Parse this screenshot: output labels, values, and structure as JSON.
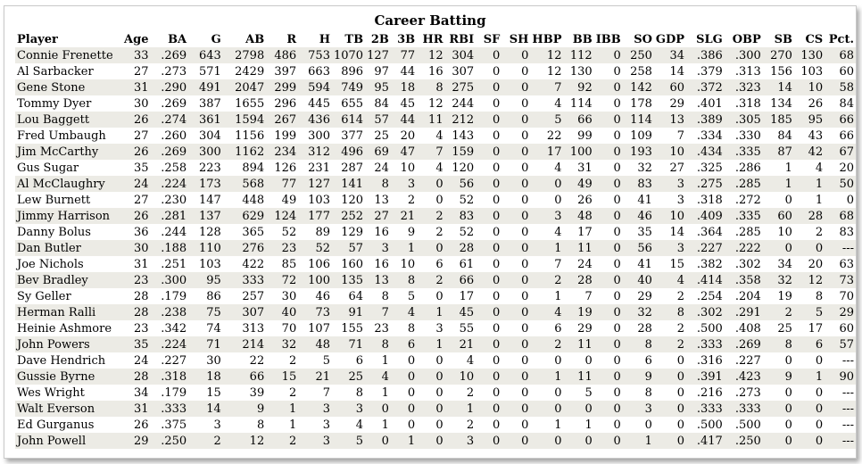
{
  "title": "Career Batting",
  "columns": [
    "Player",
    "Age",
    "BA",
    "G",
    "AB",
    "R",
    "H",
    "TB",
    "2B",
    "3B",
    "HR",
    "RBI",
    "SF",
    "SH",
    "HBP",
    "BB",
    "IBB",
    "SO",
    "GDP",
    "SLG",
    "OBP",
    "SB",
    "CS",
    "Pct."
  ],
  "rows": [
    [
      "Connie Frenette",
      "33",
      ".269",
      "643",
      "2798",
      "486",
      "753",
      "1070",
      "127",
      "77",
      "12",
      "304",
      "0",
      "0",
      "12",
      "112",
      "0",
      "250",
      "34",
      ".386",
      ".300",
      "270",
      "130",
      "68"
    ],
    [
      "Al Sarbacker",
      "27",
      ".273",
      "571",
      "2429",
      "397",
      "663",
      "896",
      "97",
      "44",
      "16",
      "307",
      "0",
      "0",
      "12",
      "130",
      "0",
      "258",
      "14",
      ".379",
      ".313",
      "156",
      "103",
      "60"
    ],
    [
      "Gene Stone",
      "31",
      ".290",
      "491",
      "2047",
      "299",
      "594",
      "749",
      "95",
      "18",
      "8",
      "275",
      "0",
      "0",
      "7",
      "92",
      "0",
      "142",
      "60",
      ".372",
      ".323",
      "14",
      "10",
      "58"
    ],
    [
      "Tommy Dyer",
      "30",
      ".269",
      "387",
      "1655",
      "296",
      "445",
      "655",
      "84",
      "45",
      "12",
      "244",
      "0",
      "0",
      "4",
      "114",
      "0",
      "178",
      "29",
      ".401",
      ".318",
      "134",
      "26",
      "84"
    ],
    [
      "Lou Baggett",
      "26",
      ".274",
      "361",
      "1594",
      "267",
      "436",
      "614",
      "57",
      "44",
      "11",
      "212",
      "0",
      "0",
      "5",
      "66",
      "0",
      "114",
      "13",
      ".389",
      ".305",
      "185",
      "95",
      "66"
    ],
    [
      "Fred Umbaugh",
      "27",
      ".260",
      "304",
      "1156",
      "199",
      "300",
      "377",
      "25",
      "20",
      "4",
      "143",
      "0",
      "0",
      "22",
      "99",
      "0",
      "109",
      "7",
      ".334",
      ".330",
      "84",
      "43",
      "66"
    ],
    [
      "Jim McCarthy",
      "26",
      ".269",
      "300",
      "1162",
      "234",
      "312",
      "496",
      "69",
      "47",
      "7",
      "159",
      "0",
      "0",
      "17",
      "100",
      "0",
      "193",
      "10",
      ".434",
      ".335",
      "87",
      "42",
      "67"
    ],
    [
      "Gus Sugar",
      "35",
      ".258",
      "223",
      "894",
      "126",
      "231",
      "287",
      "24",
      "10",
      "4",
      "120",
      "0",
      "0",
      "4",
      "31",
      "0",
      "32",
      "27",
      ".325",
      ".286",
      "1",
      "4",
      "20"
    ],
    [
      "Al McClaughry",
      "24",
      ".224",
      "173",
      "568",
      "77",
      "127",
      "141",
      "8",
      "3",
      "0",
      "56",
      "0",
      "0",
      "0",
      "49",
      "0",
      "83",
      "3",
      ".275",
      ".285",
      "1",
      "1",
      "50"
    ],
    [
      "Lew Burnett",
      "27",
      ".230",
      "147",
      "448",
      "49",
      "103",
      "120",
      "13",
      "2",
      "0",
      "52",
      "0",
      "0",
      "0",
      "26",
      "0",
      "41",
      "3",
      ".318",
      ".272",
      "0",
      "1",
      "0"
    ],
    [
      "Jimmy Harrison",
      "26",
      ".281",
      "137",
      "629",
      "124",
      "177",
      "252",
      "27",
      "21",
      "2",
      "83",
      "0",
      "0",
      "3",
      "48",
      "0",
      "46",
      "10",
      ".409",
      ".335",
      "60",
      "28",
      "68"
    ],
    [
      "Danny Bolus",
      "36",
      ".244",
      "128",
      "365",
      "52",
      "89",
      "129",
      "16",
      "9",
      "2",
      "52",
      "0",
      "0",
      "4",
      "17",
      "0",
      "35",
      "14",
      ".364",
      ".285",
      "10",
      "2",
      "83"
    ],
    [
      "Dan Butler",
      "30",
      ".188",
      "110",
      "276",
      "23",
      "52",
      "57",
      "3",
      "1",
      "0",
      "28",
      "0",
      "0",
      "1",
      "11",
      "0",
      "56",
      "3",
      ".227",
      ".222",
      "0",
      "0",
      "---"
    ],
    [
      "Joe Nichols",
      "31",
      ".251",
      "103",
      "422",
      "85",
      "106",
      "160",
      "16",
      "10",
      "6",
      "61",
      "0",
      "0",
      "7",
      "24",
      "0",
      "41",
      "15",
      ".382",
      ".302",
      "34",
      "20",
      "63"
    ],
    [
      "Bev Bradley",
      "23",
      ".300",
      "95",
      "333",
      "72",
      "100",
      "135",
      "13",
      "8",
      "2",
      "66",
      "0",
      "0",
      "2",
      "28",
      "0",
      "40",
      "4",
      ".414",
      ".358",
      "32",
      "12",
      "73"
    ],
    [
      "Sy Geller",
      "28",
      ".179",
      "86",
      "257",
      "30",
      "46",
      "64",
      "8",
      "5",
      "0",
      "17",
      "0",
      "0",
      "1",
      "7",
      "0",
      "29",
      "2",
      ".254",
      ".204",
      "19",
      "8",
      "70"
    ],
    [
      "Herman Ralli",
      "28",
      ".238",
      "75",
      "307",
      "40",
      "73",
      "91",
      "7",
      "4",
      "1",
      "45",
      "0",
      "0",
      "4",
      "19",
      "0",
      "32",
      "8",
      ".302",
      ".291",
      "2",
      "5",
      "29"
    ],
    [
      "Heinie Ashmore",
      "23",
      ".342",
      "74",
      "313",
      "70",
      "107",
      "155",
      "23",
      "8",
      "3",
      "55",
      "0",
      "0",
      "6",
      "29",
      "0",
      "28",
      "2",
      ".500",
      ".408",
      "25",
      "17",
      "60"
    ],
    [
      "John Powers",
      "35",
      ".224",
      "71",
      "214",
      "32",
      "48",
      "71",
      "8",
      "6",
      "1",
      "21",
      "0",
      "0",
      "2",
      "11",
      "0",
      "8",
      "2",
      ".333",
      ".269",
      "8",
      "6",
      "57"
    ],
    [
      "Dave Hendrich",
      "24",
      ".227",
      "30",
      "22",
      "2",
      "5",
      "6",
      "1",
      "0",
      "0",
      "4",
      "0",
      "0",
      "0",
      "0",
      "0",
      "6",
      "0",
      ".316",
      ".227",
      "0",
      "0",
      "---"
    ],
    [
      "Gussie Byrne",
      "28",
      ".318",
      "18",
      "66",
      "15",
      "21",
      "25",
      "4",
      "0",
      "0",
      "10",
      "0",
      "0",
      "1",
      "11",
      "0",
      "9",
      "0",
      ".391",
      ".423",
      "9",
      "1",
      "90"
    ],
    [
      "Wes Wright",
      "34",
      ".179",
      "15",
      "39",
      "2",
      "7",
      "8",
      "1",
      "0",
      "0",
      "2",
      "0",
      "0",
      "0",
      "5",
      "0",
      "8",
      "0",
      ".216",
      ".273",
      "0",
      "0",
      "---"
    ],
    [
      "Walt Everson",
      "31",
      ".333",
      "14",
      "9",
      "1",
      "3",
      "3",
      "0",
      "0",
      "0",
      "1",
      "0",
      "0",
      "0",
      "0",
      "0",
      "3",
      "0",
      ".333",
      ".333",
      "0",
      "0",
      "---"
    ],
    [
      "Ed Gurganus",
      "26",
      ".375",
      "3",
      "8",
      "1",
      "3",
      "4",
      "1",
      "0",
      "0",
      "2",
      "0",
      "0",
      "1",
      "1",
      "0",
      "0",
      "0",
      ".500",
      ".500",
      "0",
      "0",
      "---"
    ],
    [
      "John Powell",
      "29",
      ".250",
      "2",
      "12",
      "2",
      "3",
      "5",
      "0",
      "1",
      "0",
      "3",
      "0",
      "0",
      "0",
      "0",
      "0",
      "1",
      "0",
      ".417",
      ".250",
      "0",
      "0",
      "---"
    ]
  ]
}
